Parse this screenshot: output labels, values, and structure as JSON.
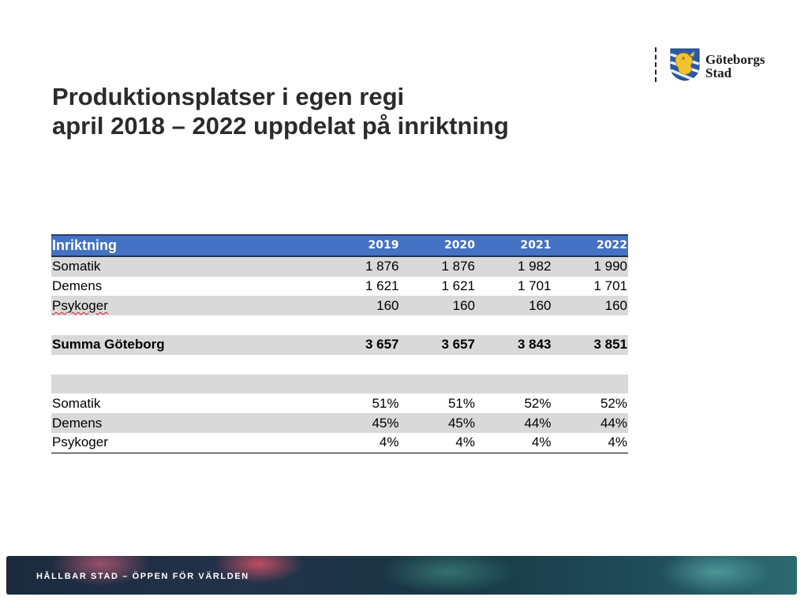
{
  "logo": {
    "line1": "Göteborgs",
    "line2": "Stad",
    "crest_icon": "lion-crest-icon"
  },
  "title": {
    "line1": "Produktionsplatser i egen regi",
    "line2": "april 2018 – 2022 uppdelat på inriktning"
  },
  "table": {
    "header": {
      "label": "Inriktning",
      "years": [
        "2019",
        "2020",
        "2021",
        "2022"
      ]
    },
    "rows": [
      {
        "label": "Somatik",
        "values": [
          "1 876",
          "1 876",
          "1 982",
          "1 990"
        ]
      },
      {
        "label": "Demens",
        "values": [
          "1 621",
          "1 621",
          "1 701",
          "1 701"
        ]
      },
      {
        "label": "Psykoger",
        "values": [
          "160",
          "160",
          "160",
          "160"
        ]
      },
      {
        "label": "",
        "values": [
          "",
          "",
          "",
          ""
        ]
      },
      {
        "label": "Summa Göteborg",
        "values": [
          "3 657",
          "3 657",
          "3 843",
          "3 851"
        ]
      },
      {
        "label": "",
        "values": [
          "",
          "",
          "",
          ""
        ]
      },
      {
        "label": "",
        "values": [
          "",
          "",
          "",
          ""
        ]
      },
      {
        "label": "Somatik",
        "values": [
          "51%",
          "51%",
          "52%",
          "52%"
        ]
      },
      {
        "label": "Demens",
        "values": [
          "45%",
          "45%",
          "44%",
          "44%"
        ]
      },
      {
        "label": "Psykoger",
        "values": [
          "4%",
          "4%",
          "4%",
          "4%"
        ]
      }
    ]
  },
  "footer": {
    "tagline": "HÅLLBAR STAD – ÖPPEN FÖR VÄRLDEN"
  },
  "colors": {
    "header_bg": "#4472c4",
    "shade_bg": "#d9d9d9",
    "title": "#2b2b2b"
  }
}
